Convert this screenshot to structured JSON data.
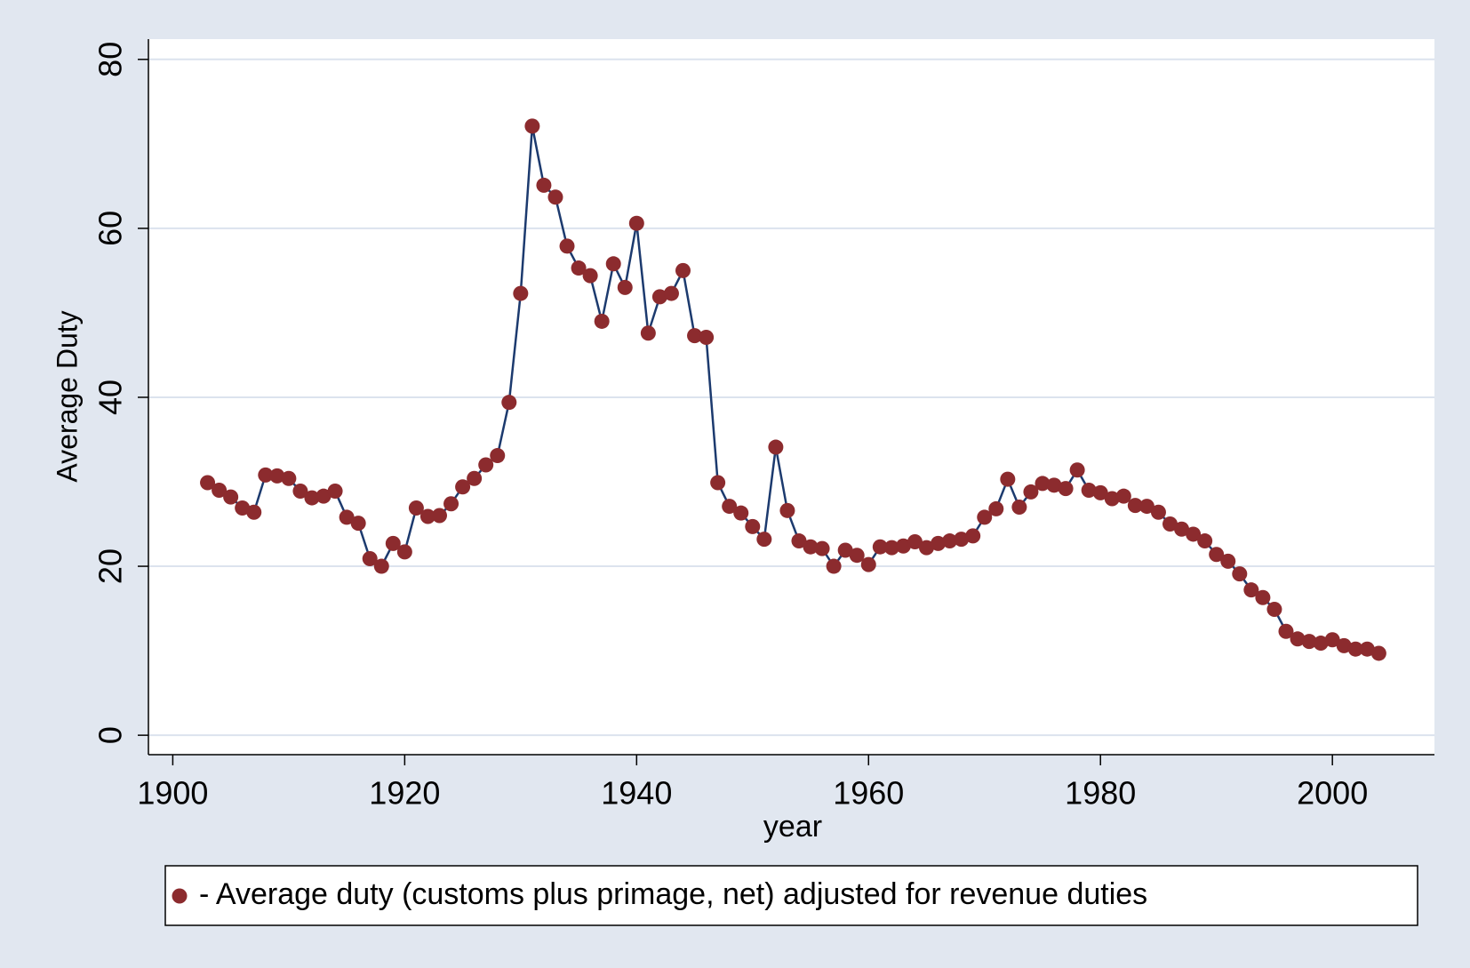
{
  "chart_data": {
    "type": "line",
    "x_label": "year",
    "y_label": "Average Duty",
    "x": [
      1903,
      1904,
      1905,
      1906,
      1907,
      1908,
      1909,
      1910,
      1911,
      1912,
      1913,
      1914,
      1915,
      1916,
      1917,
      1918,
      1919,
      1920,
      1921,
      1922,
      1923,
      1924,
      1925,
      1926,
      1927,
      1928,
      1929,
      1930,
      1931,
      1932,
      1933,
      1934,
      1935,
      1936,
      1937,
      1938,
      1939,
      1940,
      1941,
      1942,
      1943,
      1944,
      1945,
      1946,
      1947,
      1948,
      1949,
      1950,
      1951,
      1952,
      1953,
      1954,
      1955,
      1956,
      1957,
      1958,
      1959,
      1960,
      1961,
      1962,
      1963,
      1964,
      1965,
      1966,
      1967,
      1968,
      1969,
      1970,
      1971,
      1972,
      1973,
      1974,
      1975,
      1976,
      1977,
      1978,
      1979,
      1980,
      1981,
      1982,
      1983,
      1984,
      1985,
      1986,
      1987,
      1988,
      1989,
      1990,
      1991,
      1992,
      1993,
      1994,
      1995,
      1996,
      1997,
      1998,
      1999,
      2000,
      2001,
      2002,
      2003,
      2004
    ],
    "series": [
      {
        "name": "- Average duty (customs plus primage, net) adjusted for revenue duties",
        "color": "#1c3a6e",
        "marker_color": "#8c2b2e",
        "values": [
          29.9,
          29.0,
          28.2,
          26.9,
          26.4,
          30.8,
          30.7,
          30.4,
          28.9,
          28.1,
          28.3,
          28.9,
          25.8,
          25.1,
          20.9,
          20.0,
          22.7,
          21.7,
          26.9,
          25.9,
          26.0,
          27.4,
          29.4,
          30.4,
          32.0,
          33.1,
          39.4,
          52.3,
          72.1,
          65.1,
          63.7,
          57.9,
          55.3,
          54.4,
          49.0,
          55.8,
          53.0,
          60.6,
          47.6,
          51.9,
          52.3,
          55.0,
          47.3,
          47.1,
          29.9,
          27.1,
          26.3,
          24.7,
          23.2,
          34.1,
          26.6,
          23.0,
          22.3,
          22.1,
          20.0,
          21.9,
          21.3,
          20.2,
          22.3,
          22.2,
          22.4,
          22.9,
          22.2,
          22.7,
          23.0,
          23.2,
          23.6,
          25.8,
          26.8,
          30.3,
          27.0,
          28.8,
          29.8,
          29.6,
          29.2,
          31.4,
          29.0,
          28.7,
          28.0,
          28.3,
          27.2,
          27.1,
          26.4,
          25.0,
          24.4,
          23.8,
          23.0,
          21.4,
          20.6,
          19.1,
          17.2,
          16.3,
          14.9,
          12.3,
          11.4,
          11.1,
          10.9,
          11.3,
          10.6,
          10.2,
          10.2,
          9.7
        ]
      }
    ],
    "xlim": [
      1897.9,
      2008.8
    ],
    "ylim": [
      -2.3,
      82.4
    ],
    "xticks": [
      1900,
      1920,
      1940,
      1960,
      1980,
      2000
    ],
    "yticks": [
      0,
      20,
      40,
      60,
      80
    ],
    "grid": true,
    "legend": "bottom"
  }
}
